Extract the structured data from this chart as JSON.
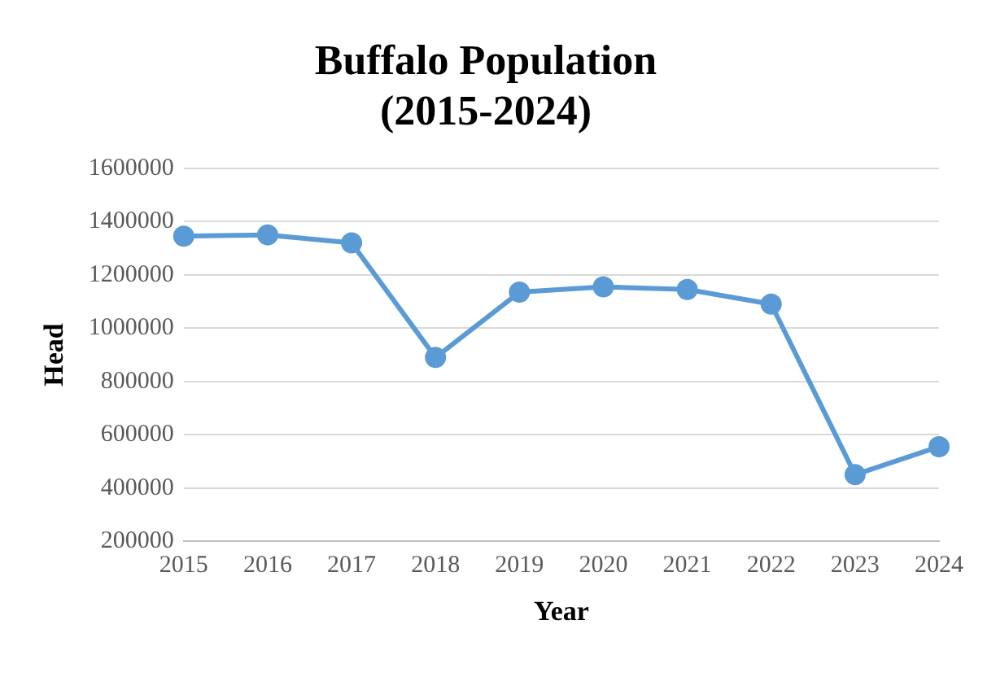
{
  "chart_data": {
    "type": "line",
    "title": "Buffalo Population\n(2015-2024)",
    "xlabel": "Year",
    "ylabel": "Head",
    "categories": [
      "2015",
      "2016",
      "2017",
      "2018",
      "2019",
      "2020",
      "2021",
      "2022",
      "2023",
      "2024"
    ],
    "series": [
      {
        "color": "#5b9bd5",
        "values": [
          1345000,
          1350000,
          1320000,
          890000,
          1135000,
          1155000,
          1145000,
          1090000,
          450000,
          555000
        ]
      }
    ],
    "ylim": [
      200000,
      1600000
    ],
    "yticks": [
      200000,
      400000,
      600000,
      800000,
      1000000,
      1200000,
      1400000,
      1600000
    ],
    "grid": "y",
    "legend": false,
    "marker": "circle",
    "line_style": "solid"
  }
}
